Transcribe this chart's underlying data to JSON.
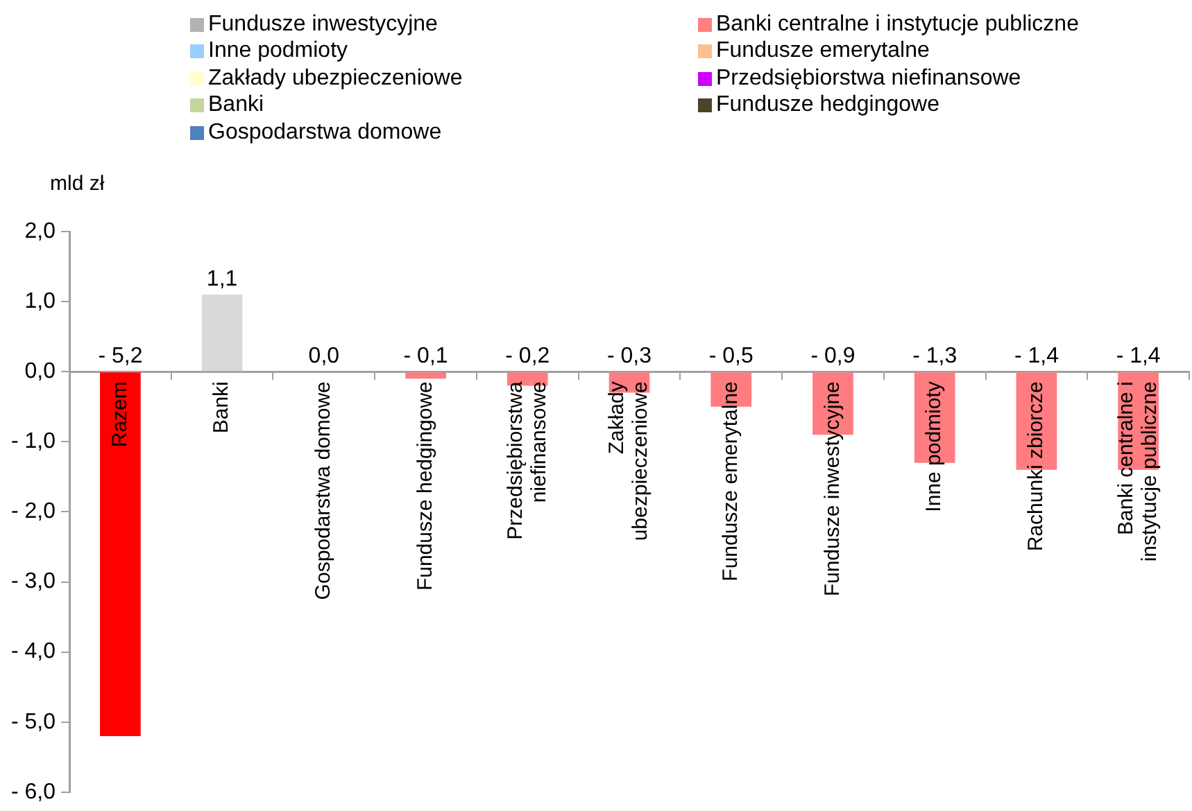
{
  "chart_data": {
    "type": "bar",
    "ylabel": "mld zł",
    "categories": [
      "Razem",
      "Banki",
      "Gospodarstwa domowe",
      "Fundusze hedgingowe",
      "Przedsiębiorstwa\nniefinansowe",
      "Zakłady\nubezpieczeniowe",
      "Fundusze emerytalne",
      "Fundusze inwestycyjne",
      "Inne podmioty",
      "Rachunki zbiorcze",
      "Banki centralne i\ninstytucje publiczne"
    ],
    "series": [
      {
        "values": [
          -5.2,
          1.1,
          0.0,
          -0.1,
          -0.2,
          -0.3,
          -0.5,
          -0.9,
          -1.3,
          -1.4,
          -1.4
        ],
        "colors": [
          "#ff0000",
          "#d9d9d9",
          "#d9d9d9",
          "#ff7c80",
          "#ff7c80",
          "#ff7c80",
          "#ff7c80",
          "#ff7c80",
          "#ff7c80",
          "#ff7c80",
          "#ff7c80"
        ],
        "value_labels": [
          "- 5,2",
          "1,1",
          "0,0",
          "- 0,1",
          "- 0,2",
          "- 0,3",
          "- 0,5",
          "- 0,9",
          "- 1,3",
          "- 1,4",
          "- 1,4"
        ]
      },
      {
        "name": "Fundusze inwestycyjne",
        "color": "#b2b2b2",
        "values": [
          null,
          null,
          null,
          null,
          null,
          null,
          null,
          null,
          null,
          null,
          null
        ]
      },
      {
        "name": "Inne podmioty",
        "color": "#99ccff",
        "values": [
          null,
          null,
          null,
          null,
          null,
          null,
          null,
          null,
          null,
          null,
          null
        ]
      },
      {
        "name": "Zakłady ubezpieczeniowe",
        "color": "#ffffcc",
        "values": [
          null,
          null,
          null,
          null,
          null,
          null,
          null,
          null,
          null,
          null,
          null
        ]
      },
      {
        "name": "Banki",
        "color": "#c3d69b",
        "values": [
          null,
          null,
          null,
          null,
          null,
          null,
          null,
          null,
          null,
          null,
          null
        ]
      },
      {
        "name": "Gospodarstwa domowe",
        "color": "#4f81bd",
        "values": [
          null,
          null,
          null,
          null,
          null,
          null,
          null,
          null,
          null,
          null,
          null
        ]
      },
      {
        "name": "Banki centralne i instytucje publiczne",
        "color": "#ff8080",
        "values": [
          null,
          null,
          null,
          null,
          null,
          null,
          null,
          null,
          null,
          null,
          null
        ]
      },
      {
        "name": "Fundusze emerytalne",
        "color": "#fac090",
        "values": [
          null,
          null,
          null,
          null,
          null,
          null,
          null,
          null,
          null,
          null,
          null
        ]
      },
      {
        "name": "Przedsiębiorstwa niefinansowe",
        "color": "#cc00ff",
        "values": [
          null,
          null,
          null,
          null,
          null,
          null,
          null,
          null,
          null,
          null,
          null
        ]
      },
      {
        "name": "Fundusze hedgingowe",
        "color": "#4a452a",
        "values": [
          null,
          null,
          null,
          null,
          null,
          null,
          null,
          null,
          null,
          null,
          null
        ]
      }
    ],
    "ylim": [
      -6,
      2
    ],
    "yticks": [
      {
        "value": 2,
        "label": "2,0"
      },
      {
        "value": 1,
        "label": "1,0"
      },
      {
        "value": 0,
        "label": "0,0"
      },
      {
        "value": -1,
        "label": "- 1,0"
      },
      {
        "value": -2,
        "label": "- 2,0"
      },
      {
        "value": -3,
        "label": "- 3,0"
      },
      {
        "value": -4,
        "label": "- 4,0"
      },
      {
        "value": -5,
        "label": "- 5,0"
      },
      {
        "value": -6,
        "label": "- 6,0"
      }
    ],
    "grid": false,
    "legend": "top"
  }
}
